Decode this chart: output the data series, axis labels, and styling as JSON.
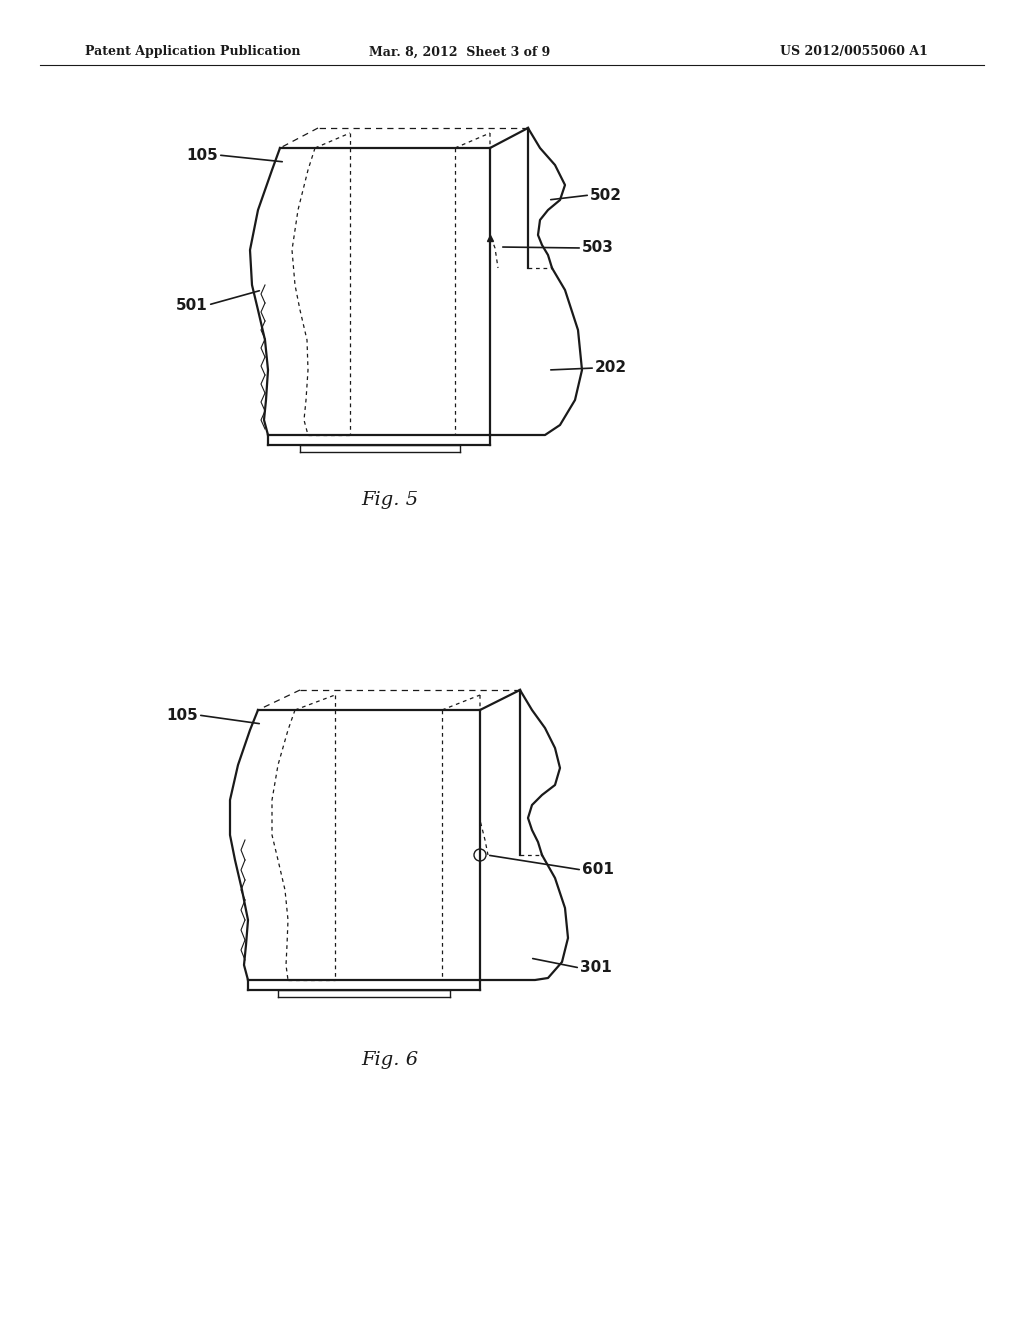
{
  "bg_color": "#ffffff",
  "line_color": "#1a1a1a",
  "header_left": "Patent Application Publication",
  "header_mid": "Mar. 8, 2012  Sheet 3 of 9",
  "header_right": "US 2012/0055060 A1",
  "fig5_label": "Fig. 5",
  "fig6_label": "Fig. 6"
}
